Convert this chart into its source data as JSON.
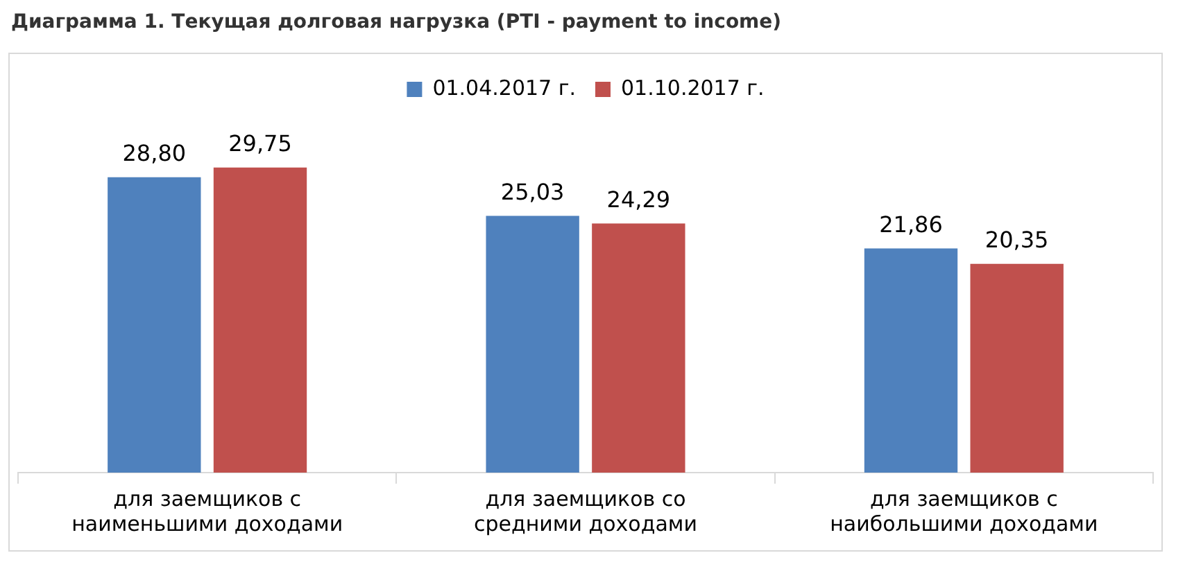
{
  "chart_data": {
    "type": "bar",
    "title": "Диаграмма 1. Текущая долговая нагрузка (PTI - payment to income)",
    "categories": [
      "для заемщиков с наименьшими доходами",
      "для заемщиков со средними доходами",
      "для заемщиков с наибольшими доходами"
    ],
    "series": [
      {
        "name": "01.04.2017 г.",
        "color": "#4f81bd",
        "values": [
          28.8,
          25.03,
          21.86
        ],
        "value_labels": [
          "28,80",
          "25,03",
          "21,86"
        ]
      },
      {
        "name": "01.10.2017 г.",
        "color": "#c0504d",
        "values": [
          29.75,
          24.29,
          20.35
        ],
        "value_labels": [
          "29,75",
          "24,29",
          "20,35"
        ]
      }
    ],
    "legend": "top",
    "grid": false
  }
}
